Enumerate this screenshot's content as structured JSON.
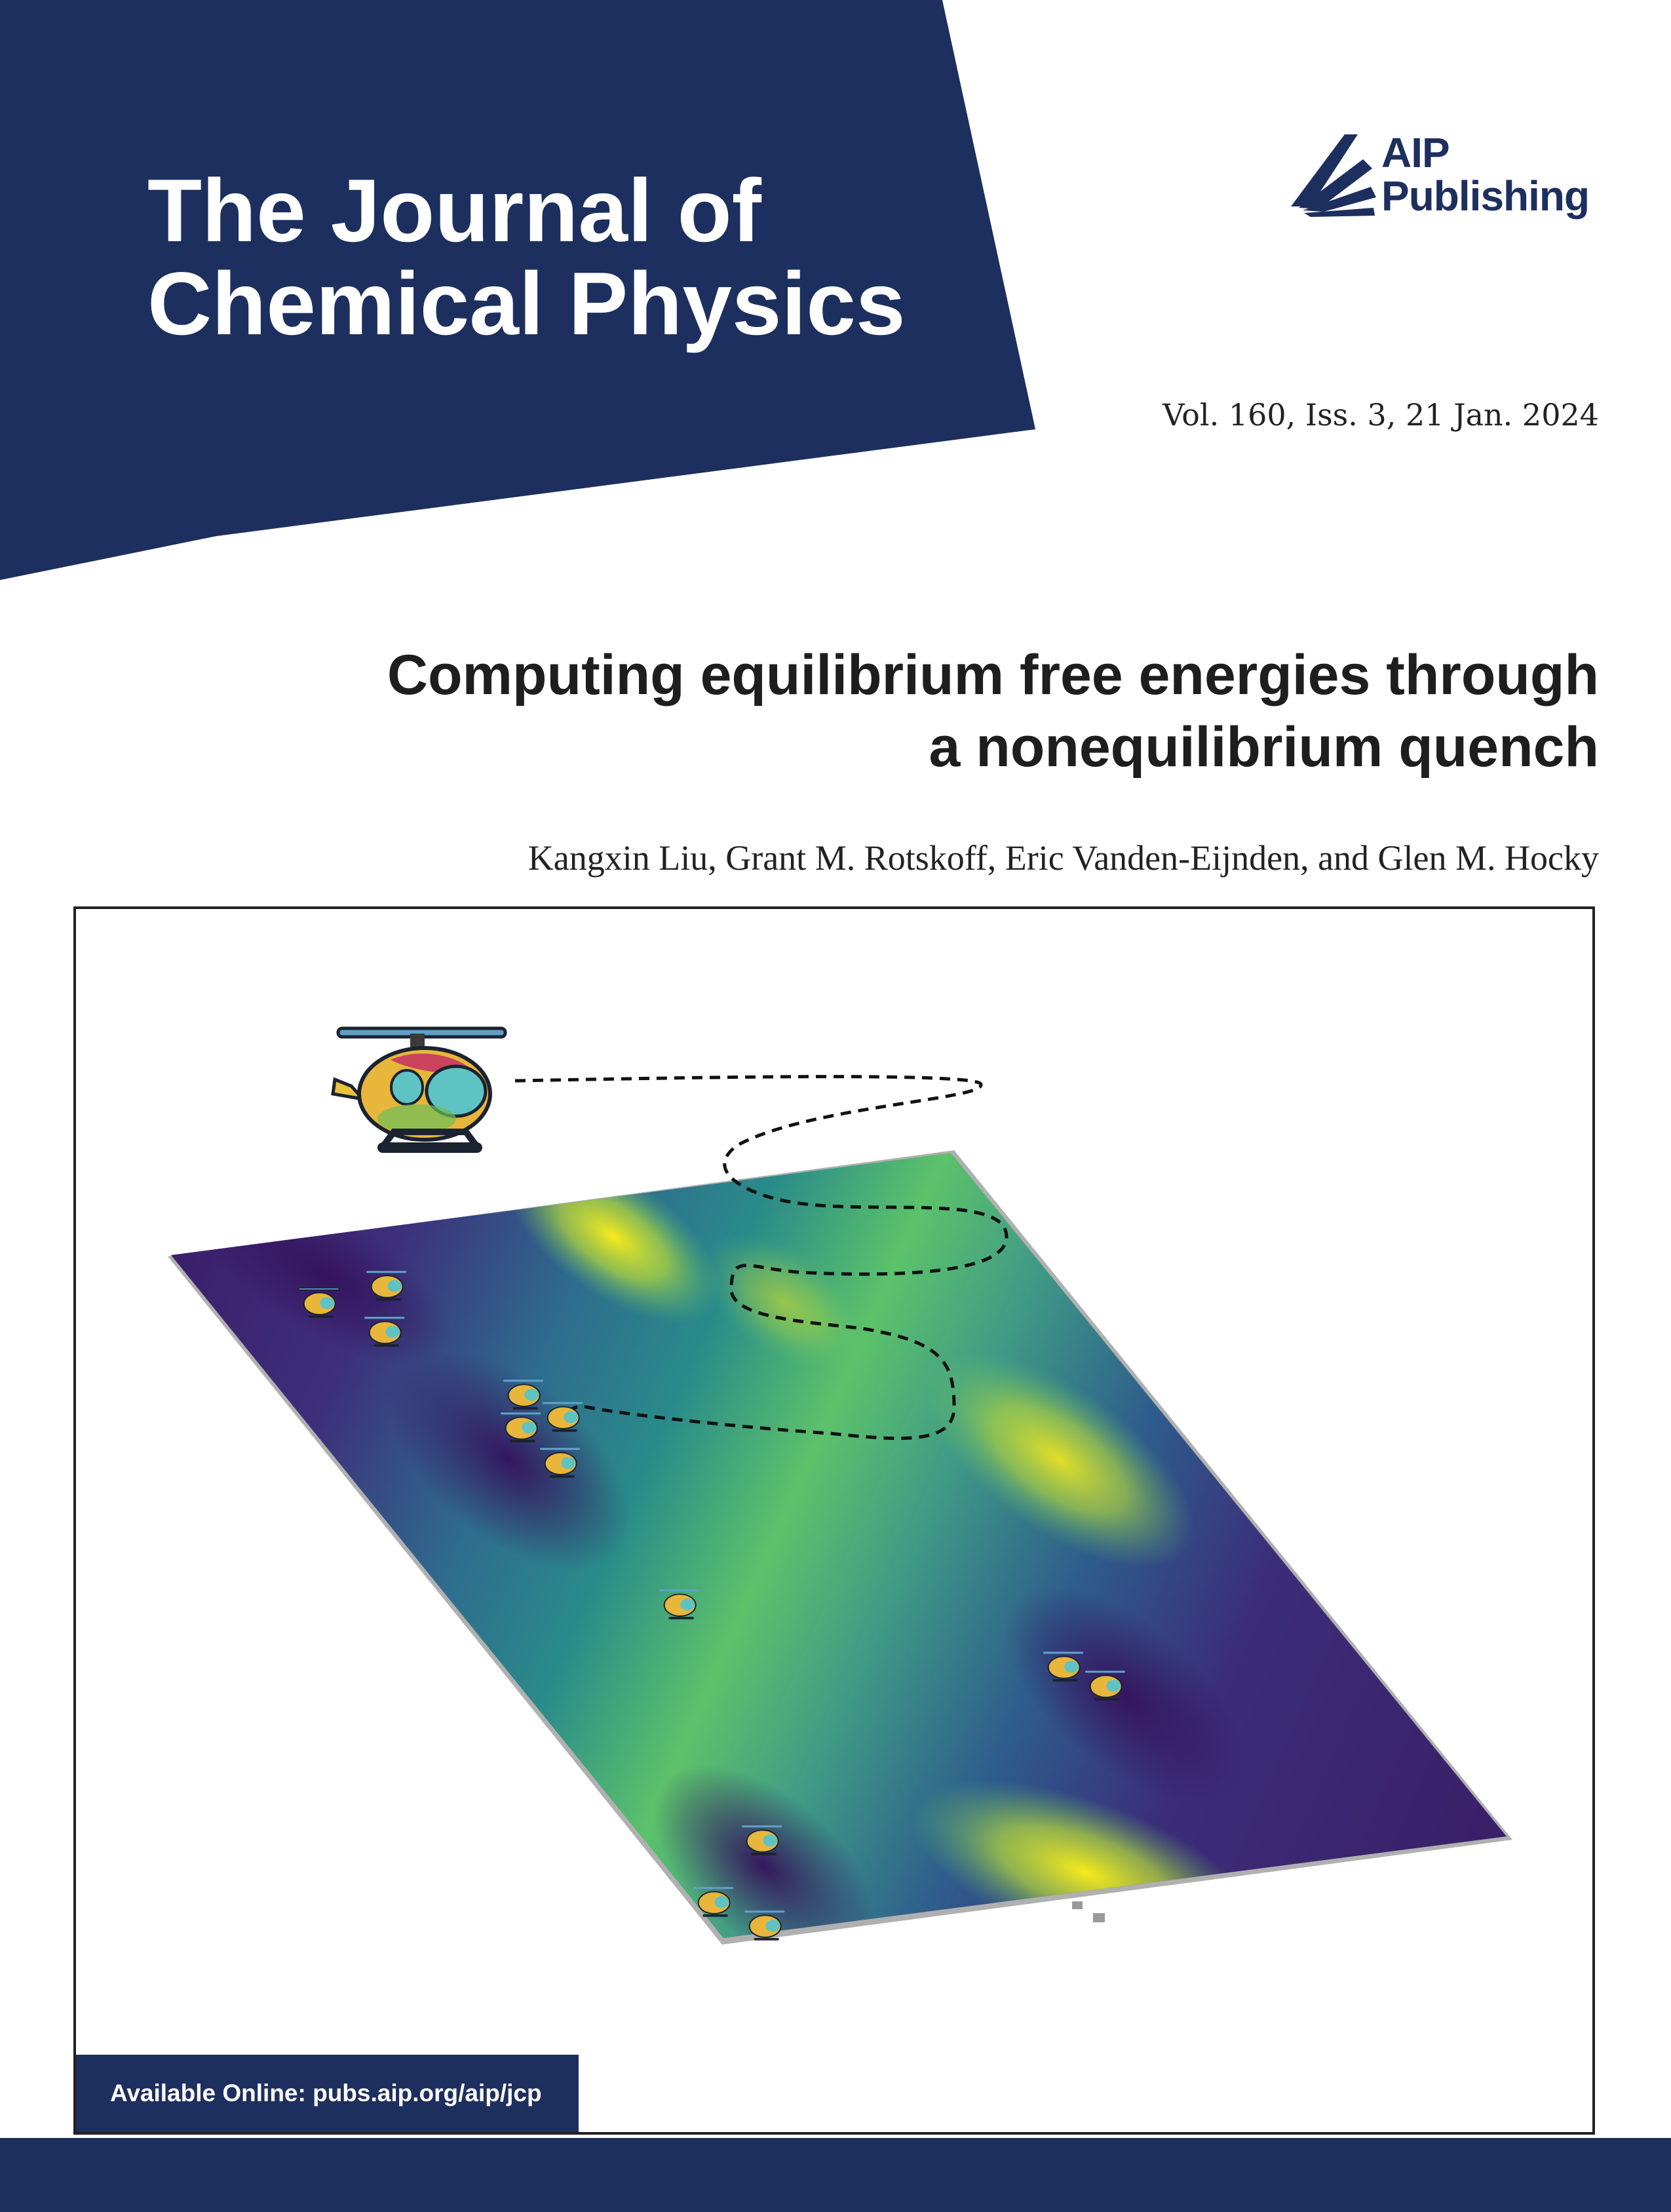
{
  "journal": {
    "title_line1": "The Journal of",
    "title_line2": "Chemical Physics",
    "publisher_line1": "AIP",
    "publisher_line2": "Publishing",
    "issue": "Vol. 160, Iss. 3, 21 Jan. 2024"
  },
  "article": {
    "title_line1": "Computing equilibrium free energies through",
    "title_line2": "a nonequilibrium quench",
    "authors": "Kangxin Liu, Grant M. Rotskoff, Eric Vanden-Eijnden, and Glen M. Hocky"
  },
  "footer": {
    "online": "Available Online: pubs.aip.org/aip/jcp"
  },
  "colors": {
    "navy": "#1d2f5e",
    "viridis_dark": "#3b1f6b",
    "viridis_mid": "#2a8b8a",
    "viridis_light": "#5cc26a",
    "viridis_yellow": "#f2e51f"
  },
  "icons": {
    "logo": "aip-rays-logo",
    "vehicle": "helicopter-icon"
  }
}
